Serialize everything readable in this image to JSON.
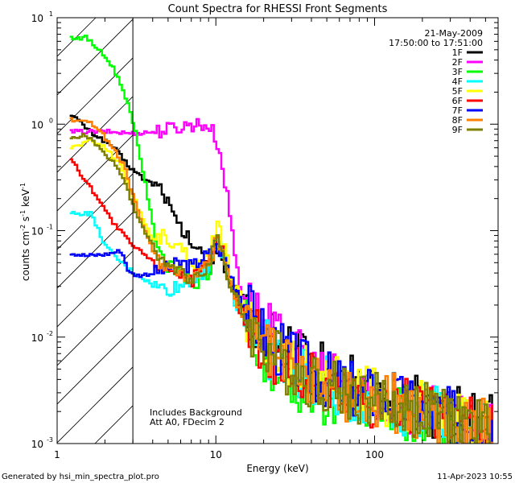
{
  "chart_data": {
    "type": "line",
    "title": "Count Spectra for RHESSI Front Segments",
    "xlabel": "Energy (keV)",
    "ylabel_parts": [
      "counts cm",
      "-2",
      " s",
      "-1",
      " keV",
      "-1"
    ],
    "x_scale": "log",
    "y_scale": "log",
    "xlim": [
      1,
      600
    ],
    "ylim": [
      0.001,
      10
    ],
    "x_ticks": [
      {
        "value": 1,
        "label": "1"
      },
      {
        "value": 10,
        "label": "10"
      },
      {
        "value": 100,
        "label": "100"
      }
    ],
    "y_ticks": [
      {
        "value": 0.001,
        "base": "10",
        "exp": "-3"
      },
      {
        "value": 0.01,
        "base": "10",
        "exp": "-2"
      },
      {
        "value": 0.1,
        "base": "10",
        "exp": "-1"
      },
      {
        "value": 1,
        "base": "10",
        "exp": "0"
      },
      {
        "value": 10,
        "base": "10",
        "exp": "1"
      }
    ],
    "date": "21-May-2009",
    "time_range": "17:50:00 to 17:51:00",
    "attenuator_vline_kev": 3,
    "annotations": [
      "Includes Background",
      "Att A0, FDecim 2"
    ],
    "series": [
      {
        "name": "1F",
        "color": "#000000",
        "points": [
          [
            1.2,
            1.25
          ],
          [
            1.6,
            0.85
          ],
          [
            2.2,
            0.62
          ],
          [
            2.8,
            0.4
          ],
          [
            3.5,
            0.3
          ],
          [
            4.5,
            0.25
          ],
          [
            5.5,
            0.12
          ],
          [
            6.5,
            0.085
          ],
          [
            8,
            0.06
          ],
          [
            9,
            0.045
          ],
          [
            10,
            0.07
          ],
          [
            11,
            0.05
          ],
          [
            12,
            0.03
          ],
          [
            15,
            0.02
          ],
          [
            20,
            0.01
          ],
          [
            30,
            0.007
          ],
          [
            40,
            0.0055
          ],
          [
            60,
            0.004
          ],
          [
            80,
            0.0035
          ],
          [
            120,
            0.0028
          ],
          [
            200,
            0.0022
          ],
          [
            350,
            0.0018
          ],
          [
            550,
            0.0015
          ]
        ]
      },
      {
        "name": "2F",
        "color": "#ff00ff",
        "points": [
          [
            1.2,
            0.85
          ],
          [
            2,
            0.85
          ],
          [
            3,
            0.82
          ],
          [
            4,
            0.85
          ],
          [
            5,
            0.9
          ],
          [
            6,
            0.95
          ],
          [
            7,
            1.0
          ],
          [
            8,
            1.0
          ],
          [
            9,
            0.95
          ],
          [
            10,
            0.7
          ],
          [
            11,
            0.35
          ],
          [
            12,
            0.15
          ],
          [
            13,
            0.06
          ],
          [
            14,
            0.03
          ],
          [
            16,
            0.02
          ],
          [
            20,
            0.012
          ],
          [
            30,
            0.007
          ],
          [
            40,
            0.005
          ],
          [
            60,
            0.0035
          ],
          [
            80,
            0.003
          ],
          [
            120,
            0.0025
          ],
          [
            200,
            0.002
          ],
          [
            350,
            0.0015
          ],
          [
            550,
            0.0012
          ]
        ]
      },
      {
        "name": "3F",
        "color": "#00ff00",
        "points": [
          [
            1.2,
            6.5
          ],
          [
            1.5,
            6.5
          ],
          [
            1.8,
            5.0
          ],
          [
            2.2,
            3.5
          ],
          [
            2.6,
            2.0
          ],
          [
            3,
            1.0
          ],
          [
            3.5,
            0.3
          ],
          [
            4,
            0.1
          ],
          [
            4.5,
            0.06
          ],
          [
            5,
            0.045
          ],
          [
            6,
            0.04
          ],
          [
            7,
            0.03
          ],
          [
            8,
            0.035
          ],
          [
            9,
            0.04
          ],
          [
            10,
            0.08
          ],
          [
            11,
            0.06
          ],
          [
            12,
            0.03
          ],
          [
            15,
            0.015
          ],
          [
            20,
            0.006
          ],
          [
            30,
            0.004
          ],
          [
            40,
            0.003
          ],
          [
            60,
            0.0025
          ],
          [
            80,
            0.0022
          ],
          [
            120,
            0.002
          ],
          [
            200,
            0.0018
          ],
          [
            350,
            0.0015
          ],
          [
            550,
            0.0012
          ]
        ]
      },
      {
        "name": "4F",
        "color": "#00ffff",
        "points": [
          [
            1.2,
            0.145
          ],
          [
            1.6,
            0.145
          ],
          [
            2,
            0.07
          ],
          [
            2.5,
            0.05
          ],
          [
            3,
            0.04
          ],
          [
            3.5,
            0.035
          ],
          [
            4,
            0.03
          ],
          [
            5,
            0.028
          ],
          [
            6,
            0.03
          ],
          [
            7,
            0.035
          ],
          [
            8,
            0.04
          ],
          [
            9,
            0.05
          ],
          [
            10,
            0.08
          ],
          [
            11,
            0.06
          ],
          [
            12,
            0.03
          ],
          [
            15,
            0.014
          ],
          [
            20,
            0.008
          ],
          [
            30,
            0.005
          ],
          [
            40,
            0.004
          ],
          [
            60,
            0.003
          ],
          [
            80,
            0.0028
          ],
          [
            120,
            0.0025
          ],
          [
            200,
            0.002
          ],
          [
            350,
            0.0016
          ],
          [
            550,
            0.0013
          ]
        ]
      },
      {
        "name": "5F",
        "color": "#ffff00",
        "points": [
          [
            1.2,
            0.6
          ],
          [
            1.6,
            0.7
          ],
          [
            2,
            0.6
          ],
          [
            2.5,
            0.4
          ],
          [
            3,
            0.2
          ],
          [
            3.5,
            0.12
          ],
          [
            4,
            0.08
          ],
          [
            4.5,
            0.09
          ],
          [
            5,
            0.08
          ],
          [
            6,
            0.065
          ],
          [
            7,
            0.05
          ],
          [
            8,
            0.05
          ],
          [
            9,
            0.06
          ],
          [
            10,
            0.11
          ],
          [
            11,
            0.08
          ],
          [
            12,
            0.04
          ],
          [
            15,
            0.018
          ],
          [
            20,
            0.009
          ],
          [
            30,
            0.006
          ],
          [
            40,
            0.0045
          ],
          [
            60,
            0.0035
          ],
          [
            80,
            0.003
          ],
          [
            120,
            0.0026
          ],
          [
            200,
            0.002
          ],
          [
            350,
            0.0016
          ],
          [
            550,
            0.0013
          ]
        ]
      },
      {
        "name": "6F",
        "color": "#ff0000",
        "points": [
          [
            1.2,
            0.48
          ],
          [
            1.4,
            0.33
          ],
          [
            1.8,
            0.2
          ],
          [
            2.2,
            0.12
          ],
          [
            2.6,
            0.09
          ],
          [
            3,
            0.07
          ],
          [
            3.5,
            0.06
          ],
          [
            4,
            0.05
          ],
          [
            5,
            0.045
          ],
          [
            6,
            0.04
          ],
          [
            7,
            0.035
          ],
          [
            8,
            0.04
          ],
          [
            9,
            0.05
          ],
          [
            10,
            0.08
          ],
          [
            11,
            0.06
          ],
          [
            12,
            0.03
          ],
          [
            15,
            0.015
          ],
          [
            20,
            0.008
          ],
          [
            30,
            0.005
          ],
          [
            40,
            0.004
          ],
          [
            60,
            0.003
          ],
          [
            80,
            0.0028
          ],
          [
            120,
            0.0025
          ],
          [
            200,
            0.002
          ],
          [
            350,
            0.0016
          ],
          [
            550,
            0.0013
          ]
        ]
      },
      {
        "name": "7F",
        "color": "#0000ff",
        "points": [
          [
            1.2,
            0.062
          ],
          [
            1.5,
            0.058
          ],
          [
            2,
            0.06
          ],
          [
            2.5,
            0.065
          ],
          [
            2.8,
            0.04
          ],
          [
            3.2,
            0.038
          ],
          [
            4,
            0.04
          ],
          [
            5,
            0.045
          ],
          [
            6,
            0.05
          ],
          [
            7,
            0.045
          ],
          [
            8,
            0.055
          ],
          [
            9,
            0.06
          ],
          [
            10,
            0.07
          ],
          [
            11,
            0.06
          ],
          [
            12,
            0.04
          ],
          [
            15,
            0.02
          ],
          [
            20,
            0.01
          ],
          [
            30,
            0.006
          ],
          [
            40,
            0.0045
          ],
          [
            60,
            0.0035
          ],
          [
            80,
            0.003
          ],
          [
            120,
            0.0026
          ],
          [
            200,
            0.002
          ],
          [
            350,
            0.0017
          ],
          [
            550,
            0.0014
          ]
        ]
      },
      {
        "name": "8F",
        "color": "#ff8000",
        "points": [
          [
            1.2,
            1.1
          ],
          [
            1.5,
            1.1
          ],
          [
            1.8,
            0.9
          ],
          [
            2.2,
            0.6
          ],
          [
            2.6,
            0.4
          ],
          [
            3,
            0.2
          ],
          [
            3.5,
            0.1
          ],
          [
            4,
            0.06
          ],
          [
            4.5,
            0.05
          ],
          [
            5,
            0.045
          ],
          [
            6,
            0.04
          ],
          [
            7,
            0.035
          ],
          [
            8,
            0.04
          ],
          [
            9,
            0.05
          ],
          [
            10,
            0.085
          ],
          [
            11,
            0.06
          ],
          [
            12,
            0.03
          ],
          [
            15,
            0.015
          ],
          [
            20,
            0.008
          ],
          [
            30,
            0.005
          ],
          [
            40,
            0.004
          ],
          [
            60,
            0.003
          ],
          [
            80,
            0.0028
          ],
          [
            120,
            0.0025
          ],
          [
            200,
            0.002
          ],
          [
            350,
            0.0016
          ],
          [
            550,
            0.0013
          ]
        ]
      },
      {
        "name": "9F",
        "color": "#808000",
        "points": [
          [
            1.2,
            0.72
          ],
          [
            1.5,
            0.8
          ],
          [
            1.8,
            0.6
          ],
          [
            2.2,
            0.45
          ],
          [
            2.6,
            0.3
          ],
          [
            3,
            0.16
          ],
          [
            3.5,
            0.1
          ],
          [
            4,
            0.07
          ],
          [
            4.5,
            0.055
          ],
          [
            5,
            0.045
          ],
          [
            6,
            0.04
          ],
          [
            7,
            0.035
          ],
          [
            8,
            0.04
          ],
          [
            9,
            0.055
          ],
          [
            10,
            0.09
          ],
          [
            11,
            0.06
          ],
          [
            12,
            0.03
          ],
          [
            15,
            0.015
          ],
          [
            20,
            0.008
          ],
          [
            30,
            0.005
          ],
          [
            40,
            0.004
          ],
          [
            60,
            0.0032
          ],
          [
            80,
            0.0028
          ],
          [
            120,
            0.0024
          ],
          [
            200,
            0.002
          ],
          [
            350,
            0.0016
          ],
          [
            550,
            0.0013
          ]
        ]
      }
    ]
  },
  "footer": {
    "generated_by": "Generated by hsi_min_spectra_plot.pro",
    "timestamp": "11-Apr-2023 10:55"
  }
}
